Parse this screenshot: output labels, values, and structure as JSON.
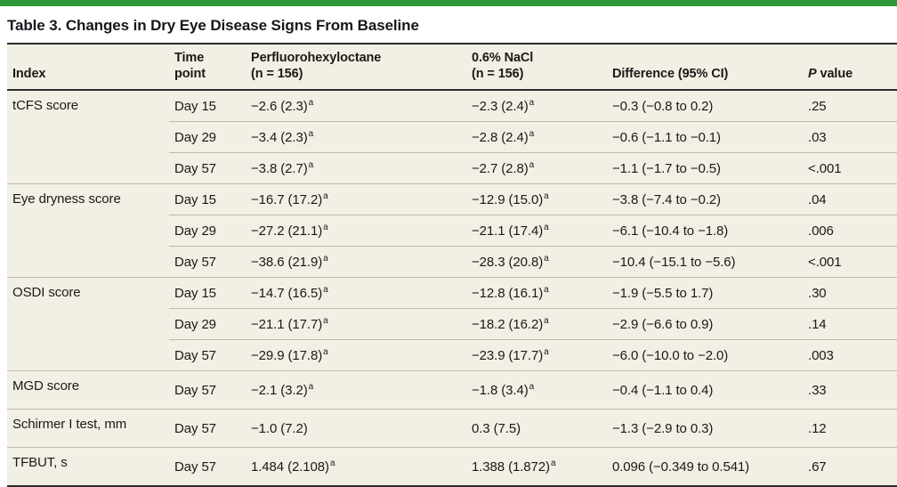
{
  "page": {
    "title": "Table 3. Changes in Dry Eye Disease Signs From Baseline"
  },
  "colors": {
    "accent_green": "#2d9a3a",
    "row_background": "#f2efe4",
    "rule_dark": "#2b2b2b",
    "rule_light": "#bdb9aa",
    "text": "#1a1a1a"
  },
  "table": {
    "headers": [
      {
        "parts": [
          {
            "text": "Index"
          }
        ]
      },
      {
        "parts": [
          {
            "text": "Time\npoint"
          }
        ]
      },
      {
        "parts": [
          {
            "text": "Perfluorohexyloctane\n(n = 156)"
          }
        ]
      },
      {
        "parts": [
          {
            "text": "0.6% NaCl\n(n = 156)"
          }
        ]
      },
      {
        "parts": [
          {
            "text": "Difference (95% CI)"
          }
        ]
      },
      {
        "parts": [
          {
            "text": "P",
            "italic": true
          },
          {
            "text": " value"
          }
        ]
      }
    ],
    "footnote_marker": "a",
    "groups": [
      {
        "index": "tCFS score",
        "rows": [
          {
            "time": "Day 15",
            "drug": "−2.6 (2.3)",
            "drug_sup": "a",
            "ctrl": "−2.3 (2.4)",
            "ctrl_sup": "a",
            "diff": "−0.3 (−0.8 to 0.2)",
            "p": ".25"
          },
          {
            "time": "Day 29",
            "drug": "−3.4 (2.3)",
            "drug_sup": "a",
            "ctrl": "−2.8 (2.4)",
            "ctrl_sup": "a",
            "diff": "−0.6 (−1.1 to −0.1)",
            "p": ".03"
          },
          {
            "time": "Day 57",
            "drug": "−3.8 (2.7)",
            "drug_sup": "a",
            "ctrl": "−2.7 (2.8)",
            "ctrl_sup": "a",
            "diff": "−1.1 (−1.7 to −0.5)",
            "p": "<.001"
          }
        ]
      },
      {
        "index": "Eye dryness score",
        "rows": [
          {
            "time": "Day 15",
            "drug": "−16.7 (17.2)",
            "drug_sup": "a",
            "ctrl": "−12.9 (15.0)",
            "ctrl_sup": "a",
            "diff": "−3.8 (−7.4 to −0.2)",
            "p": ".04"
          },
          {
            "time": "Day 29",
            "drug": "−27.2 (21.1)",
            "drug_sup": "a",
            "ctrl": "−21.1 (17.4)",
            "ctrl_sup": "a",
            "diff": "−6.1 (−10.4 to −1.8)",
            "p": ".006"
          },
          {
            "time": "Day 57",
            "drug": "−38.6 (21.9)",
            "drug_sup": "a",
            "ctrl": "−28.3 (20.8)",
            "ctrl_sup": "a",
            "diff": "−10.4 (−15.1 to −5.6)",
            "p": "<.001"
          }
        ]
      },
      {
        "index": "OSDI score",
        "rows": [
          {
            "time": "Day 15",
            "drug": "−14.7 (16.5)",
            "drug_sup": "a",
            "ctrl": "−12.8 (16.1)",
            "ctrl_sup": "a",
            "diff": "−1.9 (−5.5 to 1.7)",
            "p": ".30"
          },
          {
            "time": "Day 29",
            "drug": "−21.1 (17.7)",
            "drug_sup": "a",
            "ctrl": "−18.2 (16.2)",
            "ctrl_sup": "a",
            "diff": "−2.9 (−6.6 to 0.9)",
            "p": ".14"
          },
          {
            "time": "Day 57",
            "drug": "−29.9 (17.8)",
            "drug_sup": "a",
            "ctrl": "−23.9 (17.7)",
            "ctrl_sup": "a",
            "diff": "−6.0 (−10.0 to −2.0)",
            "p": ".003"
          }
        ]
      },
      {
        "index": "MGD score",
        "rows": [
          {
            "time": "Day 57",
            "drug": "−2.1 (3.2)",
            "drug_sup": "a",
            "ctrl": "−1.8 (3.4)",
            "ctrl_sup": "a",
            "diff": "−0.4 (−1.1 to 0.4)",
            "p": ".33"
          }
        ]
      },
      {
        "index": "Schirmer I test, mm",
        "rows": [
          {
            "time": "Day 57",
            "drug": "−1.0 (7.2)",
            "drug_sup": "",
            "ctrl": "0.3 (7.5)",
            "ctrl_sup": "",
            "diff": "−1.3 (−2.9 to 0.3)",
            "p": ".12"
          }
        ]
      },
      {
        "index": "TFBUT, s",
        "rows": [
          {
            "time": "Day 57",
            "drug": "1.484 (2.108)",
            "drug_sup": "a",
            "ctrl": "1.388 (1.872)",
            "ctrl_sup": "a",
            "diff": "0.096 (−0.349 to 0.541)",
            "p": ".67"
          }
        ]
      }
    ]
  }
}
